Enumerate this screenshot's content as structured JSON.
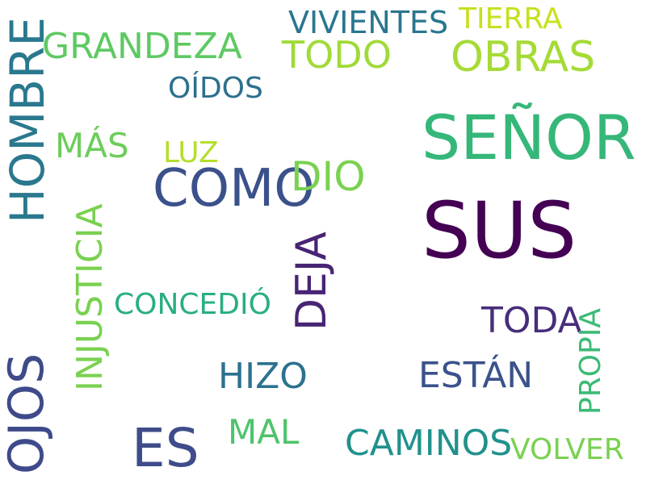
{
  "words": [
    {
      "text": "SUS",
      "color": "#440154"
    },
    {
      "text": "SEÑOR",
      "color": "#35b779"
    },
    {
      "text": "COMO",
      "color": "#3b518b"
    },
    {
      "text": "HOMBRE",
      "color": "#2a788e"
    },
    {
      "text": "OJOS",
      "color": "#3e4a89"
    },
    {
      "text": "ES",
      "color": "#3e4c8a"
    },
    {
      "text": "DEJA",
      "color": "#482475"
    },
    {
      "text": "OBRAS",
      "color": "#a5db36"
    },
    {
      "text": "DIO",
      "color": "#7ad151"
    },
    {
      "text": "GRANDEZA",
      "color": "#5ec962"
    },
    {
      "text": "TODO",
      "color": "#a0da39"
    },
    {
      "text": "INJUSTICIA",
      "color": "#7ad151"
    },
    {
      "text": "CAMINOS",
      "color": "#21918c"
    },
    {
      "text": "ESTÁN",
      "color": "#3b528b"
    },
    {
      "text": "HIZO",
      "color": "#2c728e"
    },
    {
      "text": "TODA",
      "color": "#472d7b"
    },
    {
      "text": "VIVIENTES",
      "color": "#2a768e"
    },
    {
      "text": "MÁS",
      "color": "#6ccd5a"
    },
    {
      "text": "MAL",
      "color": "#4ec36b"
    },
    {
      "text": "CONCEDIÓ",
      "color": "#29af7f"
    },
    {
      "text": "OÍDOS",
      "color": "#2d708e"
    },
    {
      "text": "PROPIA",
      "color": "#3bbb75"
    },
    {
      "text": "TIERRA",
      "color": "#c8e020"
    },
    {
      "text": "VOLVER",
      "color": "#7ad151"
    },
    {
      "text": "LUZ",
      "color": "#b5de2b"
    }
  ]
}
